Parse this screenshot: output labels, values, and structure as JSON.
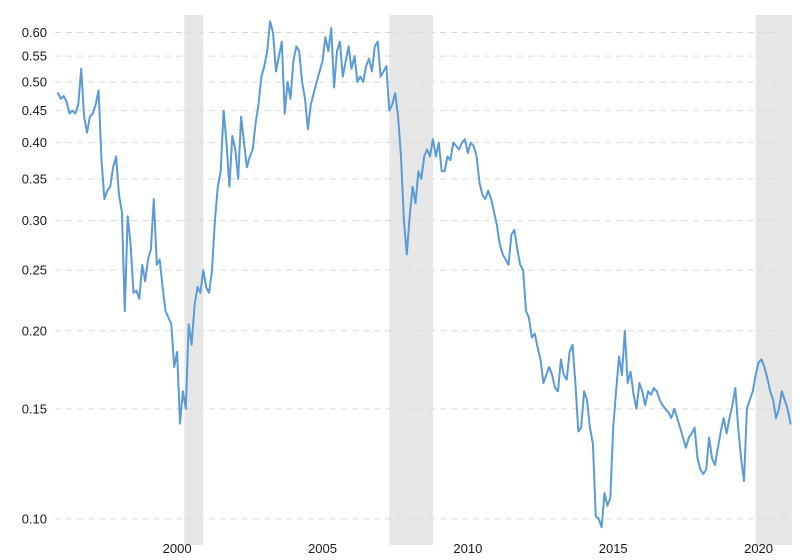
{
  "chart_data": {
    "type": "line",
    "title": "",
    "xlabel": "",
    "ylabel": "",
    "y_scale": "log",
    "xlim": [
      1995.8,
      2021.15
    ],
    "ylim": [
      0.096,
      0.64
    ],
    "grid": "horizontal dashed",
    "legend": "none",
    "line_color": "#5b9bd5",
    "band_color": "#e6e6e6",
    "y_ticks": [
      {
        "value": 0.1,
        "label": "0.10"
      },
      {
        "value": 0.15,
        "label": "0.15"
      },
      {
        "value": 0.2,
        "label": "0.20"
      },
      {
        "value": 0.25,
        "label": "0.25"
      },
      {
        "value": 0.3,
        "label": "0.30"
      },
      {
        "value": 0.35,
        "label": "0.35"
      },
      {
        "value": 0.4,
        "label": "0.40"
      },
      {
        "value": 0.45,
        "label": "0.45"
      },
      {
        "value": 0.5,
        "label": "0.50"
      },
      {
        "value": 0.55,
        "label": "0.55"
      },
      {
        "value": 0.6,
        "label": "0.60"
      }
    ],
    "x_ticks": [
      {
        "value": 2000,
        "label": "2000"
      },
      {
        "value": 2005,
        "label": "2005"
      },
      {
        "value": 2010,
        "label": "2010"
      },
      {
        "value": 2015,
        "label": "2015"
      },
      {
        "value": 2020,
        "label": "2020"
      }
    ],
    "shaded_periods": [
      {
        "start": 2000.25,
        "end": 2000.9
      },
      {
        "start": 2007.3,
        "end": 2008.8
      },
      {
        "start": 2019.9,
        "end": 2021.15
      }
    ],
    "series": [
      {
        "x": [
          1995.9,
          1996.0,
          1996.1,
          1996.2,
          1996.3,
          1996.4,
          1996.5,
          1996.6,
          1996.7,
          1996.8,
          1996.9,
          1997.0,
          1997.1,
          1997.2,
          1997.3,
          1997.4,
          1997.5,
          1997.6,
          1997.7,
          1997.8,
          1997.9,
          1998.0,
          1998.1,
          1998.2,
          1998.3,
          1998.4,
          1998.5,
          1998.6,
          1998.7,
          1998.8,
          1998.9,
          1999.0,
          1999.1,
          1999.2,
          1999.3,
          1999.4,
          1999.5,
          1999.6,
          1999.7,
          1999.8,
          1999.9,
          2000.0,
          2000.1,
          2000.2,
          2000.3,
          2000.4,
          2000.5,
          2000.6,
          2000.7,
          2000.8,
          2000.9,
          2001.0,
          2001.1,
          2001.2,
          2001.3,
          2001.4,
          2001.5,
          2001.6,
          2001.7,
          2001.8,
          2001.9,
          2002.0,
          2002.1,
          2002.2,
          2002.3,
          2002.4,
          2002.5,
          2002.6,
          2002.7,
          2002.8,
          2002.9,
          2003.0,
          2003.1,
          2003.2,
          2003.3,
          2003.4,
          2003.5,
          2003.6,
          2003.7,
          2003.8,
          2003.9,
          2004.0,
          2004.1,
          2004.2,
          2004.3,
          2004.4,
          2004.5,
          2004.6,
          2004.7,
          2004.8,
          2004.9,
          2005.0,
          2005.1,
          2005.2,
          2005.3,
          2005.4,
          2005.5,
          2005.6,
          2005.7,
          2005.8,
          2005.9,
          2006.0,
          2006.1,
          2006.2,
          2006.3,
          2006.4,
          2006.5,
          2006.6,
          2006.7,
          2006.8,
          2006.9,
          2007.0,
          2007.1,
          2007.2,
          2007.3,
          2007.4,
          2007.5,
          2007.6,
          2007.7,
          2007.8,
          2007.9,
          2008.0,
          2008.1,
          2008.2,
          2008.3,
          2008.4,
          2008.5,
          2008.6,
          2008.7,
          2008.8,
          2008.9,
          2009.0,
          2009.1,
          2009.2,
          2009.3,
          2009.4,
          2009.5,
          2009.6,
          2009.7,
          2009.8,
          2009.9,
          2010.0,
          2010.1,
          2010.2,
          2010.3,
          2010.4,
          2010.5,
          2010.6,
          2010.7,
          2010.8,
          2010.9,
          2011.0,
          2011.1,
          2011.2,
          2011.3,
          2011.4,
          2011.5,
          2011.6,
          2011.7,
          2011.8,
          2011.9,
          2012.0,
          2012.1,
          2012.2,
          2012.3,
          2012.4,
          2012.5,
          2012.6,
          2012.7,
          2012.8,
          2012.9,
          2013.0,
          2013.1,
          2013.2,
          2013.3,
          2013.4,
          2013.5,
          2013.6,
          2013.7,
          2013.8,
          2013.9,
          2014.0,
          2014.1,
          2014.2,
          2014.3,
          2014.4,
          2014.5,
          2014.6,
          2014.7,
          2014.8,
          2014.9,
          2015.0,
          2015.1,
          2015.2,
          2015.3,
          2015.4,
          2015.5,
          2015.6,
          2015.7,
          2015.8,
          2015.9,
          2016.0,
          2016.1,
          2016.2,
          2016.3,
          2016.4,
          2016.5,
          2016.6,
          2016.7,
          2016.8,
          2016.9,
          2017.0,
          2017.1,
          2017.2,
          2017.3,
          2017.4,
          2017.5,
          2017.6,
          2017.7,
          2017.8,
          2017.9,
          2018.0,
          2018.1,
          2018.2,
          2018.3,
          2018.4,
          2018.5,
          2018.6,
          2018.7,
          2018.8,
          2018.9,
          2019.0,
          2019.1,
          2019.2,
          2019.3,
          2019.4,
          2019.5,
          2019.6,
          2019.7,
          2019.8,
          2019.9,
          2020.0,
          2020.1,
          2020.2,
          2020.3,
          2020.4,
          2020.5,
          2020.6,
          2020.7,
          2020.8,
          2020.9,
          2021.0,
          2021.1
        ],
        "values": [
          0.48,
          0.47,
          0.475,
          0.465,
          0.445,
          0.45,
          0.445,
          0.46,
          0.525,
          0.44,
          0.415,
          0.44,
          0.445,
          0.46,
          0.485,
          0.375,
          0.325,
          0.335,
          0.34,
          0.365,
          0.38,
          0.33,
          0.31,
          0.215,
          0.305,
          0.275,
          0.23,
          0.232,
          0.225,
          0.255,
          0.24,
          0.26,
          0.27,
          0.325,
          0.255,
          0.26,
          0.235,
          0.215,
          0.21,
          0.205,
          0.175,
          0.185,
          0.142,
          0.16,
          0.15,
          0.205,
          0.19,
          0.22,
          0.235,
          0.23,
          0.25,
          0.235,
          0.23,
          0.25,
          0.3,
          0.34,
          0.36,
          0.45,
          0.4,
          0.34,
          0.41,
          0.39,
          0.35,
          0.44,
          0.4,
          0.365,
          0.38,
          0.39,
          0.43,
          0.46,
          0.51,
          0.53,
          0.56,
          0.625,
          0.6,
          0.52,
          0.55,
          0.58,
          0.445,
          0.5,
          0.47,
          0.54,
          0.57,
          0.56,
          0.5,
          0.47,
          0.42,
          0.46,
          0.48,
          0.5,
          0.52,
          0.54,
          0.59,
          0.56,
          0.61,
          0.49,
          0.56,
          0.58,
          0.51,
          0.54,
          0.57,
          0.525,
          0.55,
          0.5,
          0.51,
          0.5,
          0.53,
          0.545,
          0.52,
          0.57,
          0.58,
          0.51,
          0.52,
          0.53,
          0.45,
          0.46,
          0.48,
          0.44,
          0.38,
          0.3,
          0.265,
          0.305,
          0.34,
          0.32,
          0.36,
          0.35,
          0.38,
          0.39,
          0.38,
          0.405,
          0.38,
          0.4,
          0.36,
          0.36,
          0.38,
          0.375,
          0.4,
          0.395,
          0.39,
          0.4,
          0.405,
          0.385,
          0.4,
          0.395,
          0.38,
          0.345,
          0.33,
          0.325,
          0.335,
          0.325,
          0.31,
          0.295,
          0.275,
          0.265,
          0.26,
          0.255,
          0.285,
          0.29,
          0.27,
          0.255,
          0.25,
          0.215,
          0.21,
          0.195,
          0.198,
          0.188,
          0.18,
          0.165,
          0.17,
          0.175,
          0.17,
          0.162,
          0.16,
          0.18,
          0.17,
          0.167,
          0.185,
          0.19,
          0.165,
          0.138,
          0.14,
          0.16,
          0.155,
          0.14,
          0.132,
          0.101,
          0.1,
          0.097,
          0.11,
          0.105,
          0.108,
          0.14,
          0.16,
          0.182,
          0.17,
          0.2,
          0.165,
          0.172,
          0.158,
          0.15,
          0.165,
          0.16,
          0.152,
          0.16,
          0.158,
          0.162,
          0.16,
          0.155,
          0.152,
          0.15,
          0.148,
          0.145,
          0.15,
          0.145,
          0.14,
          0.135,
          0.13,
          0.135,
          0.137,
          0.14,
          0.125,
          0.12,
          0.118,
          0.12,
          0.135,
          0.125,
          0.122,
          0.13,
          0.138,
          0.145,
          0.137,
          0.145,
          0.152,
          0.162,
          0.14,
          0.125,
          0.115,
          0.15,
          0.155,
          0.16,
          0.17,
          0.178,
          0.18,
          0.175,
          0.168,
          0.16,
          0.155,
          0.145,
          0.15,
          0.16,
          0.155,
          0.15,
          0.142
        ]
      }
    ]
  }
}
